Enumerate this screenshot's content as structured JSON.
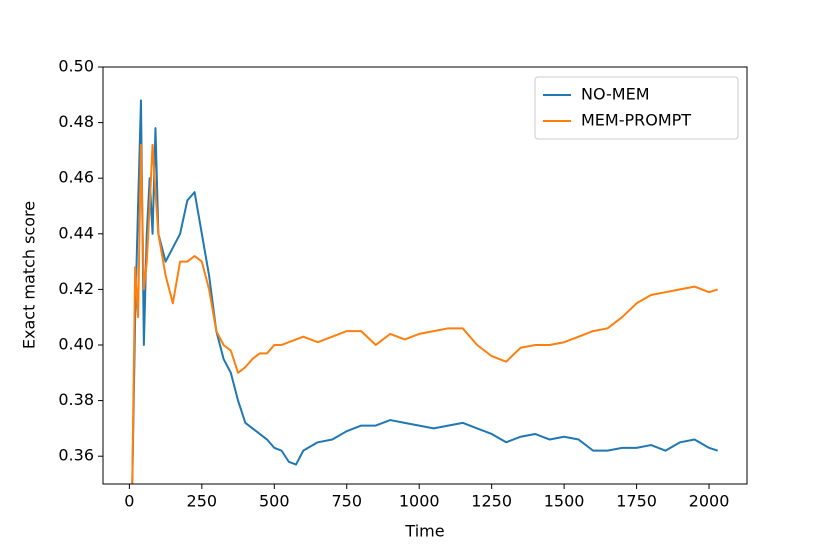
{
  "chart_data": {
    "type": "line",
    "x_label": "Time",
    "y_label": "Exact match score",
    "x": [
      10,
      20,
      30,
      40,
      50,
      60,
      70,
      80,
      90,
      100,
      125,
      150,
      175,
      200,
      225,
      250,
      275,
      300,
      325,
      350,
      375,
      400,
      425,
      450,
      475,
      500,
      525,
      550,
      575,
      600,
      650,
      700,
      750,
      800,
      850,
      900,
      950,
      1000,
      1050,
      1100,
      1150,
      1200,
      1250,
      1300,
      1350,
      1400,
      1450,
      1500,
      1550,
      1600,
      1650,
      1700,
      1750,
      1800,
      1850,
      1900,
      1950,
      2000,
      2030
    ],
    "series": [
      {
        "name": "NO-MEM",
        "color": "#1f77b4",
        "values": [
          0.35,
          0.41,
          0.45,
          0.488,
          0.4,
          0.44,
          0.46,
          0.44,
          0.478,
          0.44,
          0.43,
          0.435,
          0.44,
          0.452,
          0.455,
          0.44,
          0.425,
          0.405,
          0.395,
          0.39,
          0.38,
          0.372,
          0.37,
          0.368,
          0.366,
          0.363,
          0.362,
          0.358,
          0.357,
          0.362,
          0.365,
          0.366,
          0.369,
          0.371,
          0.371,
          0.373,
          0.372,
          0.371,
          0.37,
          0.371,
          0.372,
          0.37,
          0.368,
          0.365,
          0.367,
          0.368,
          0.366,
          0.367,
          0.366,
          0.362,
          0.362,
          0.363,
          0.363,
          0.364,
          0.362,
          0.365,
          0.366,
          0.363,
          0.362
        ]
      },
      {
        "name": "MEM-PROMPT",
        "color": "#ff7f0e",
        "values": [
          0.35,
          0.428,
          0.41,
          0.472,
          0.42,
          0.43,
          0.45,
          0.472,
          0.455,
          0.44,
          0.425,
          0.415,
          0.43,
          0.43,
          0.432,
          0.43,
          0.42,
          0.405,
          0.4,
          0.398,
          0.39,
          0.392,
          0.395,
          0.397,
          0.397,
          0.4,
          0.4,
          0.401,
          0.402,
          0.403,
          0.401,
          0.403,
          0.405,
          0.405,
          0.4,
          0.404,
          0.402,
          0.404,
          0.405,
          0.406,
          0.406,
          0.4,
          0.396,
          0.394,
          0.399,
          0.4,
          0.4,
          0.401,
          0.403,
          0.405,
          0.406,
          0.41,
          0.415,
          0.418,
          0.419,
          0.42,
          0.421,
          0.419,
          0.42
        ]
      }
    ],
    "xlim": [
      -91,
      2131
    ],
    "ylim": [
      0.35,
      0.5
    ],
    "xticks": [
      0,
      250,
      500,
      750,
      1000,
      1250,
      1500,
      1750,
      2000
    ],
    "yticks": [
      0.36,
      0.38,
      {
        "value": 0.4,
        "label": "0.40"
      },
      0.42,
      0.44,
      0.46,
      0.48,
      {
        "value": 0.5,
        "label": "0.50"
      }
    ],
    "grid": false,
    "legend": "upper right"
  }
}
